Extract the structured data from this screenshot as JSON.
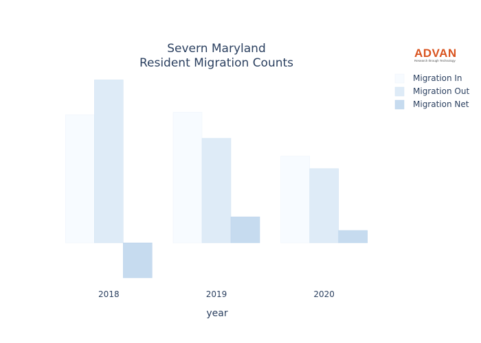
{
  "chart_data": {
    "type": "bar",
    "title": [
      "Severn Maryland",
      "Resident Migration Counts"
    ],
    "xlabel": "year",
    "ylabel": "",
    "categories": [
      "2018",
      "2019",
      "2020"
    ],
    "series": [
      {
        "name": "Migration In",
        "values": [
          3000,
          3060,
          2030
        ],
        "color": "#f7fbff",
        "stroke": "#eaf2fb"
      },
      {
        "name": "Migration Out",
        "values": [
          3820,
          2450,
          1740
        ],
        "color": "#deebf7",
        "stroke": "#d2e3f3"
      },
      {
        "name": "Migration Net",
        "values": [
          -820,
          610,
          290
        ],
        "color": "#c6dbef",
        "stroke": "#b9d2ea"
      }
    ],
    "ylim": [
      -1000,
      4000
    ],
    "grid": false,
    "legend_position": "top-right"
  },
  "logo": {
    "name": "ADVAN",
    "tagline": "Research through Technology"
  }
}
